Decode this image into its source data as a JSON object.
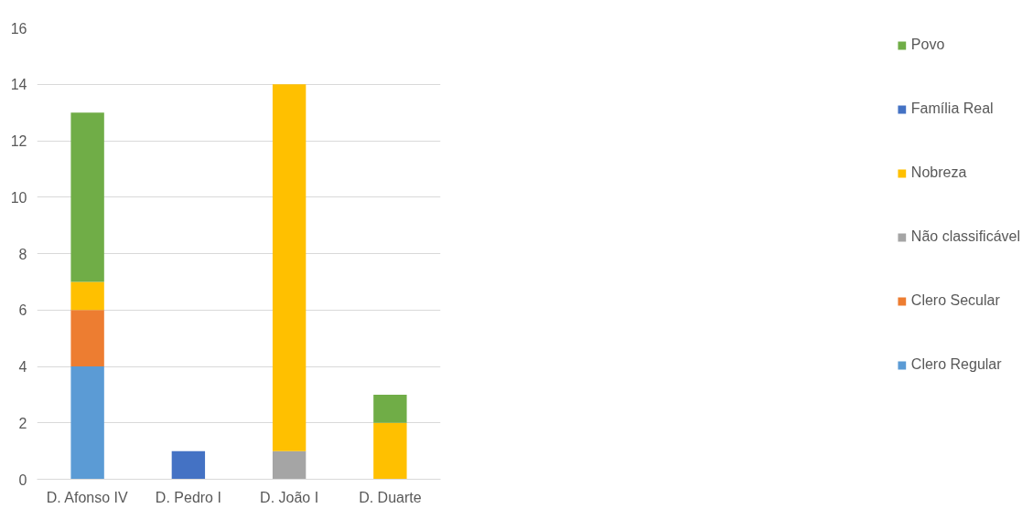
{
  "chart_data": {
    "type": "bar",
    "stacked": true,
    "categories": [
      "D. Afonso IV",
      "D. Pedro I",
      "D. João I",
      "D. Duarte"
    ],
    "series": [
      {
        "name": "Clero Regular",
        "color": "#5b9bd5",
        "values": [
          4,
          null,
          null,
          null
        ]
      },
      {
        "name": "Clero Secular",
        "color": "#ed7d31",
        "values": [
          2,
          null,
          null,
          null
        ]
      },
      {
        "name": "Não classificável",
        "color": "#a5a5a5",
        "values": [
          null,
          null,
          1,
          null
        ]
      },
      {
        "name": "Nobreza",
        "color": "#ffc000",
        "values": [
          1,
          null,
          13,
          2
        ]
      },
      {
        "name": "Família Real",
        "color": "#4472c4",
        "values": [
          null,
          1,
          null,
          null
        ]
      },
      {
        "name": "Povo",
        "color": "#70ad47",
        "values": [
          6,
          null,
          null,
          1
        ]
      }
    ],
    "ylim": [
      0,
      16
    ],
    "yticks": [
      0,
      2,
      4,
      6,
      8,
      10,
      12,
      14,
      16
    ],
    "grid": "y",
    "legend": "right"
  }
}
